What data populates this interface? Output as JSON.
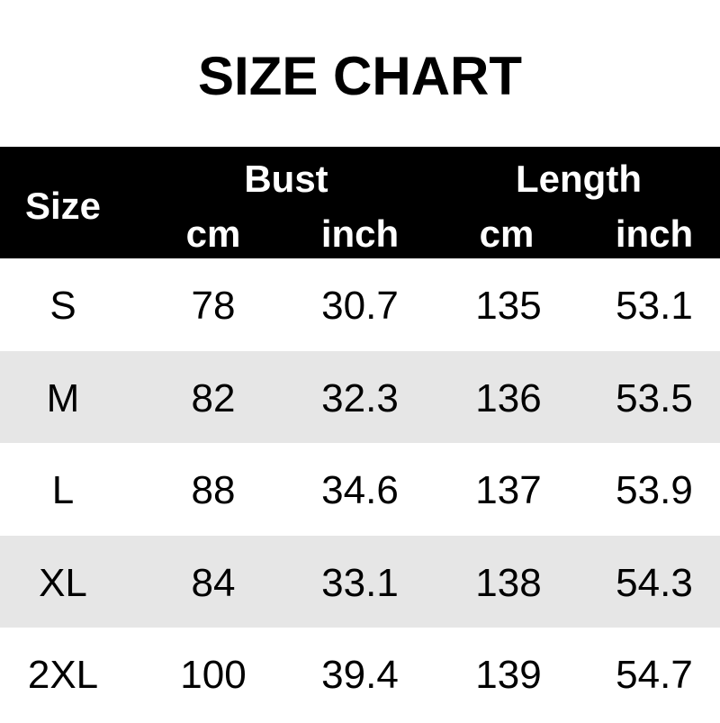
{
  "title": "SIZE CHART",
  "colors": {
    "header_bg": "#000000",
    "header_text": "#ffffff",
    "alt_row": "#e6e6e6"
  },
  "header": {
    "size": "Size",
    "bust": "Bust",
    "length": "Length",
    "units": [
      "cm",
      "inch",
      "cm",
      "inch"
    ]
  },
  "chart_data": {
    "type": "table",
    "title": "SIZE CHART",
    "columns": [
      "Size",
      "Bust cm",
      "Bust inch",
      "Length cm",
      "Length inch"
    ],
    "rows": [
      [
        "S",
        "78",
        "30.7",
        "135",
        "53.1"
      ],
      [
        "M",
        "82",
        "32.3",
        "136",
        "53.5"
      ],
      [
        "L",
        "88",
        "34.6",
        "137",
        "53.9"
      ],
      [
        "XL",
        "84",
        "33.1",
        "138",
        "54.3"
      ],
      [
        "2XL",
        "100",
        "39.4",
        "139",
        "54.7"
      ]
    ]
  }
}
